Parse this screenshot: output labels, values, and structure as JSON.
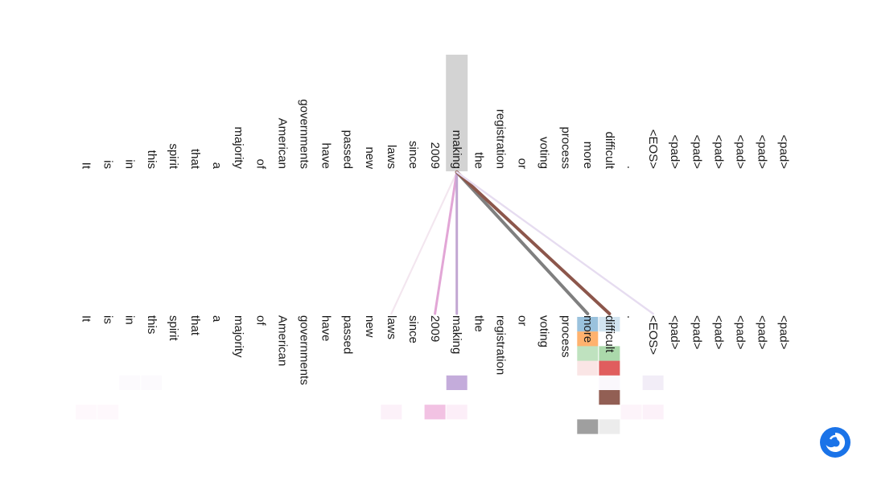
{
  "tokens": [
    "It",
    "is",
    "in",
    "this",
    "spirit",
    "that",
    "a",
    "majority",
    "of",
    "American",
    "governments",
    "have",
    "passed",
    "new",
    "laws",
    "since",
    "2009",
    "making",
    "the",
    "registration",
    "or",
    "voting",
    "process",
    "more",
    "difficult",
    ".",
    "<EOS>",
    "<pad>",
    "<pad>",
    "<pad>",
    "<pad>",
    "<pad>",
    "<pad>"
  ],
  "focus_index": 17,
  "highlight_color": "#d3d3d3",
  "attention": [
    {
      "to": 14,
      "color": "#f3e6ef",
      "weight": 0.25
    },
    {
      "to": 16,
      "color": "#e2a6d6",
      "weight": 0.6
    },
    {
      "to": 17,
      "color": "#c2a6d2",
      "weight": 0.6
    },
    {
      "to": 23,
      "color": "#7f7f7f",
      "weight": 1.0
    },
    {
      "to": 24,
      "color": "#8c564b",
      "weight": 1.0
    },
    {
      "to": 26,
      "color": "#e6dcf0",
      "weight": 0.35
    }
  ],
  "heads": [
    {
      "color": "#1f77b4",
      "weights": {
        "23": 0.45,
        "24": 0.2
      }
    },
    {
      "color": "#ff7f0e",
      "weights": {
        "23": 0.6
      }
    },
    {
      "color": "#2ca02c",
      "weights": {
        "23": 0.3,
        "24": 0.4
      }
    },
    {
      "color": "#d62728",
      "weights": {
        "23": 0.12,
        "24": 0.75
      }
    },
    {
      "color": "#9467bd",
      "weights": {
        "17": 0.55,
        "24": 0.05,
        "26": 0.12,
        "2": 0.03,
        "3": 0.03
      }
    },
    {
      "color": "#8c564b",
      "weights": {
        "24": 0.95
      }
    },
    {
      "color": "#e377c2",
      "weights": {
        "0": 0.05,
        "1": 0.05,
        "14": 0.1,
        "16": 0.45,
        "17": 0.12,
        "25": 0.08,
        "26": 0.1
      }
    },
    {
      "color": "#7f7f7f",
      "weights": {
        "23": 0.75,
        "24": 0.15
      }
    }
  ],
  "logo_icon": "circular-swirl-logo",
  "logo_color": "#1a73e8"
}
